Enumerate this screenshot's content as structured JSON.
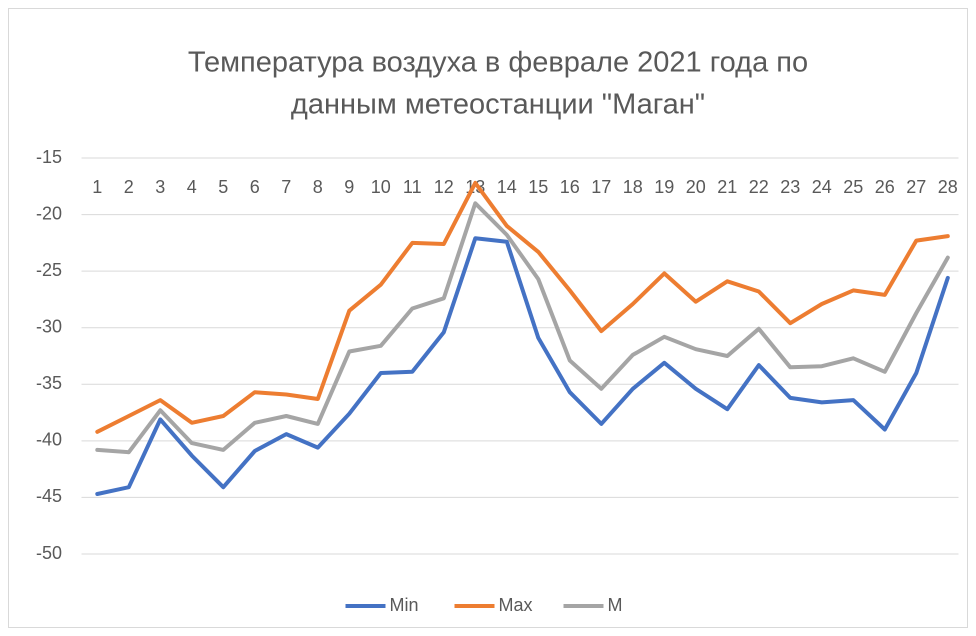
{
  "chart_data": {
    "type": "line",
    "title": [
      "Температура воздуха в феврале 2021 года по",
      "данным метеостанции \"Маган\""
    ],
    "categories": [
      "1",
      "2",
      "3",
      "4",
      "5",
      "6",
      "7",
      "8",
      "9",
      "10",
      "11",
      "12",
      "13",
      "14",
      "15",
      "16",
      "17",
      "18",
      "19",
      "20",
      "21",
      "22",
      "23",
      "24",
      "25",
      "26",
      "27",
      "28"
    ],
    "series": [
      {
        "name": "Min",
        "color": "#4472c4",
        "values": [
          -44.7,
          -44.1,
          -38.1,
          -41.3,
          -44.1,
          -40.9,
          -39.4,
          -40.6,
          -37.6,
          -34.0,
          -33.9,
          -30.4,
          -22.1,
          -22.4,
          -30.9,
          -35.7,
          -38.5,
          -35.4,
          -33.1,
          -35.4,
          -37.2,
          -33.3,
          -36.2,
          -36.6,
          -36.4,
          -39.0,
          -34.0,
          -25.6
        ]
      },
      {
        "name": "Max",
        "color": "#ed7d31",
        "values": [
          -39.2,
          -37.8,
          -36.4,
          -38.4,
          -37.8,
          -35.7,
          -35.9,
          -36.3,
          -28.5,
          -26.2,
          -22.5,
          -22.6,
          -17.2,
          -21.0,
          -23.3,
          -26.7,
          -30.3,
          -27.9,
          -25.2,
          -27.7,
          -25.9,
          -26.8,
          -29.6,
          -27.9,
          -26.7,
          -27.1,
          -22.3,
          -21.9
        ]
      },
      {
        "name": "M",
        "color": "#a5a5a5",
        "values": [
          -40.8,
          -41.0,
          -37.3,
          -40.2,
          -40.8,
          -38.4,
          -37.8,
          -38.5,
          -32.1,
          -31.6,
          -28.3,
          -27.4,
          -19.0,
          -21.8,
          -25.7,
          -32.9,
          -35.4,
          -32.4,
          -30.8,
          -31.9,
          -32.5,
          -30.1,
          -33.5,
          -33.4,
          -32.7,
          -33.9,
          -28.7,
          -23.8
        ]
      }
    ],
    "ylim": [
      -50,
      -15
    ],
    "yticks": [
      -15,
      -20,
      -25,
      -30,
      -35,
      -40,
      -45,
      -50
    ],
    "grid": true,
    "legend": "bottom"
  }
}
